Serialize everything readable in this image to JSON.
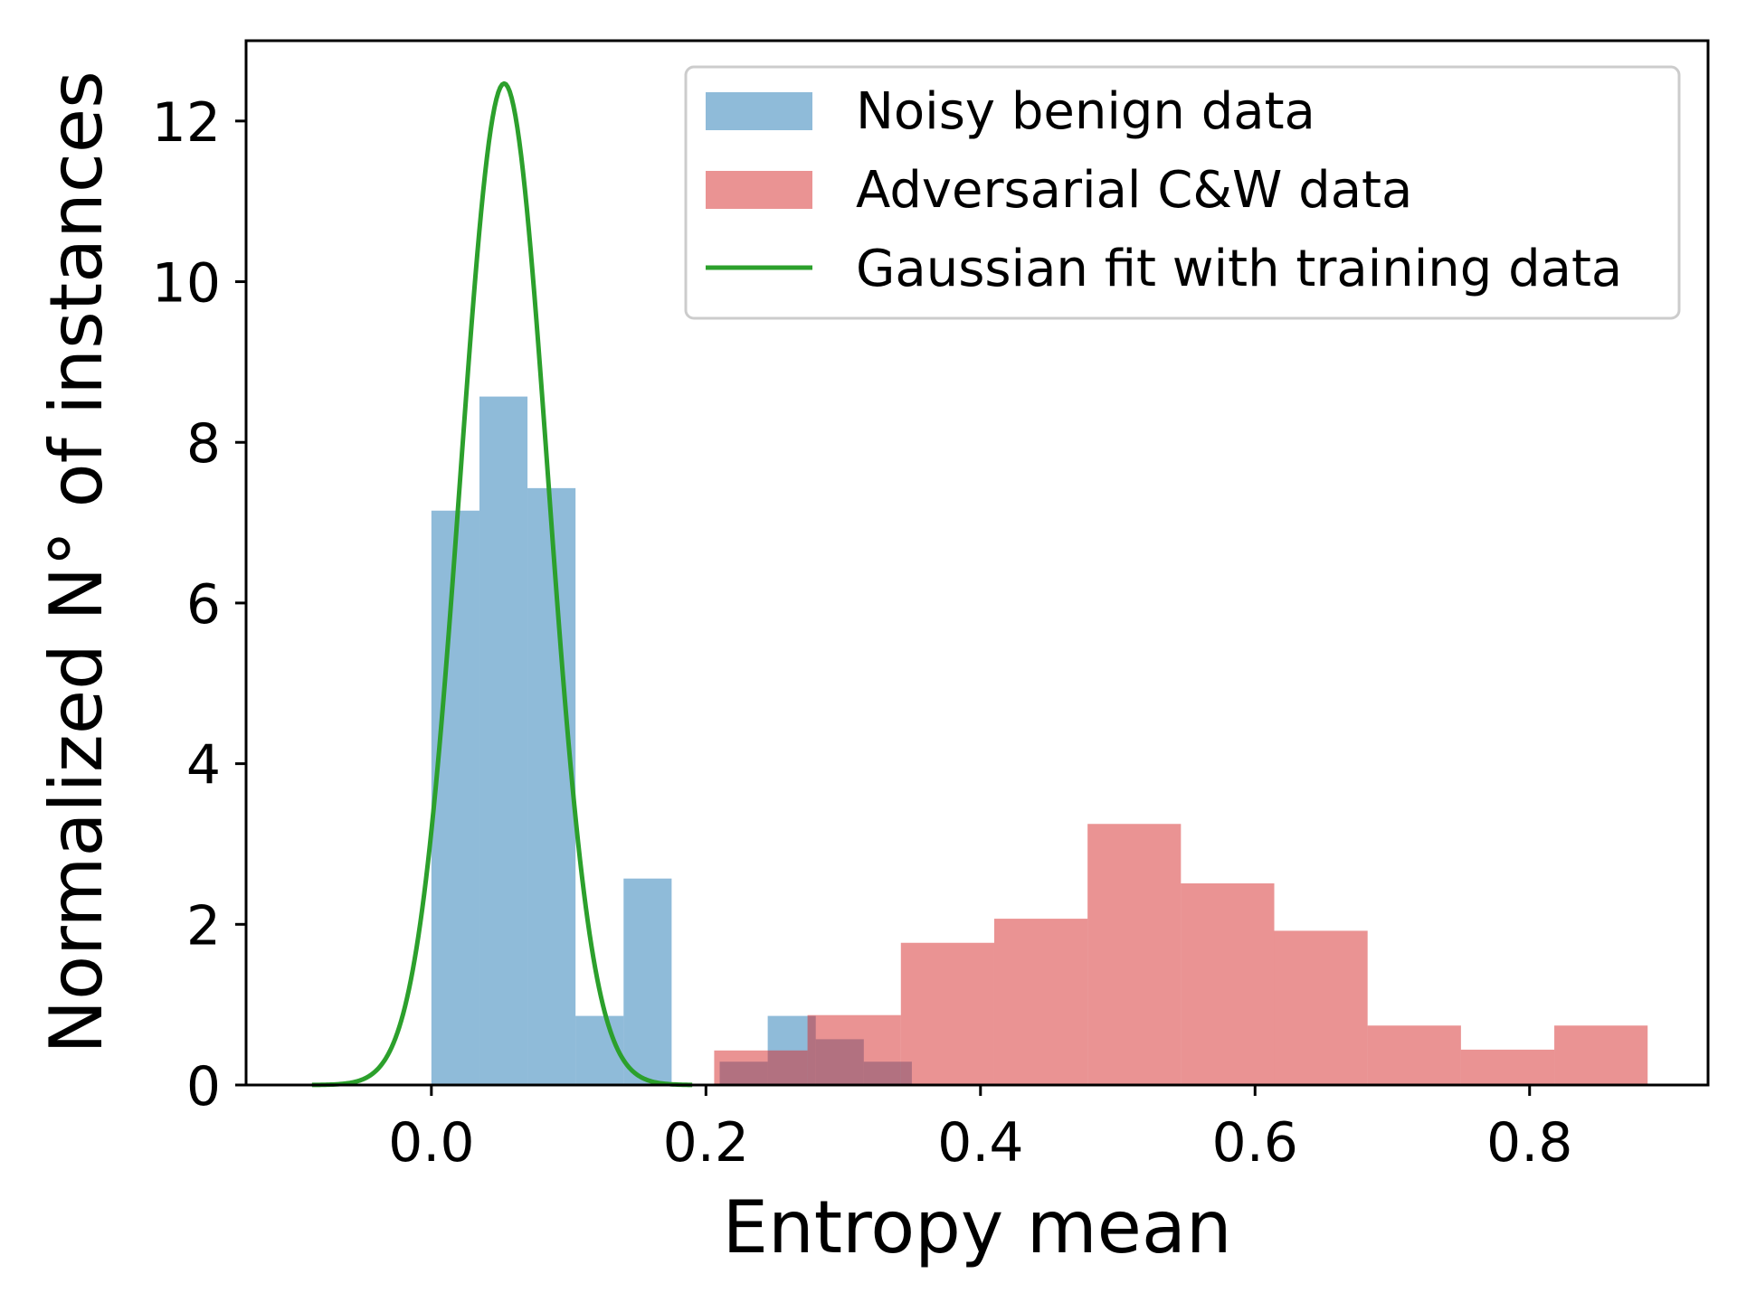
{
  "chart_data": {
    "type": "bar",
    "title": "",
    "xlabel": "Entropy mean",
    "ylabel": "Normalized N° of instances",
    "xlim": [
      -0.135,
      0.93
    ],
    "ylim": [
      0,
      13
    ],
    "xticks": [
      0.0,
      0.2,
      0.4,
      0.6,
      0.8
    ],
    "xtick_labels": [
      "0.0",
      "0.2",
      "0.4",
      "0.6",
      "0.8"
    ],
    "yticks": [
      0,
      2,
      4,
      6,
      8,
      10,
      12
    ],
    "ytick_labels": [
      "0",
      "2",
      "4",
      "6",
      "8",
      "10",
      "12"
    ],
    "legend_position": "top-right",
    "series": [
      {
        "name": "Noisy benign data",
        "kind": "histogram",
        "color": "#1f77b4",
        "opacity": 0.5,
        "bins": [
          {
            "x0": 0.0,
            "x1": 0.035,
            "value": 7.15
          },
          {
            "x0": 0.035,
            "x1": 0.07,
            "value": 8.57
          },
          {
            "x0": 0.07,
            "x1": 0.105,
            "value": 7.43
          },
          {
            "x0": 0.105,
            "x1": 0.14,
            "value": 0.86
          },
          {
            "x0": 0.14,
            "x1": 0.175,
            "value": 2.57
          },
          {
            "x0": 0.21,
            "x1": 0.245,
            "value": 0.29
          },
          {
            "x0": 0.245,
            "x1": 0.28,
            "value": 0.86
          },
          {
            "x0": 0.28,
            "x1": 0.315,
            "value": 0.57
          },
          {
            "x0": 0.315,
            "x1": 0.35,
            "value": 0.29
          }
        ]
      },
      {
        "name": "Adversarial C&W data",
        "kind": "histogram",
        "color": "#d62728",
        "opacity": 0.5,
        "bins": [
          {
            "x0": 0.206,
            "x1": 0.274,
            "value": 0.43
          },
          {
            "x0": 0.274,
            "x1": 0.342,
            "value": 0.87
          },
          {
            "x0": 0.342,
            "x1": 0.41,
            "value": 1.77
          },
          {
            "x0": 0.41,
            "x1": 0.478,
            "value": 2.07
          },
          {
            "x0": 0.478,
            "x1": 0.546,
            "value": 3.25
          },
          {
            "x0": 0.546,
            "x1": 0.614,
            "value": 2.51
          },
          {
            "x0": 0.614,
            "x1": 0.682,
            "value": 1.92
          },
          {
            "x0": 0.682,
            "x1": 0.75,
            "value": 0.74
          },
          {
            "x0": 0.75,
            "x1": 0.818,
            "value": 0.44
          },
          {
            "x0": 0.818,
            "x1": 0.886,
            "value": 0.74
          }
        ]
      },
      {
        "name": "Gaussian fit with training data",
        "kind": "line",
        "color": "#2ca02c",
        "mean": 0.053,
        "std": 0.032,
        "x_range": [
          -0.087,
          0.19
        ]
      }
    ]
  }
}
